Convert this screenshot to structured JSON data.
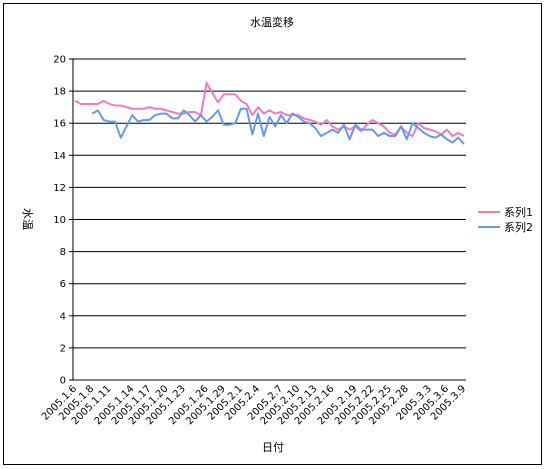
{
  "chart_data": {
    "type": "line",
    "title": "水温変移",
    "xlabel": "日付",
    "ylabel": "水温",
    "ylim": [
      0,
      20
    ],
    "yticks": [
      0,
      2,
      4,
      6,
      8,
      10,
      12,
      14,
      16,
      18,
      20
    ],
    "grid": "horizontal",
    "legend_position": "right",
    "xtick_labels": [
      "2005.1.6",
      "2005.1.8",
      "2005.1.11",
      "2005.1.14",
      "2005.1.17",
      "2005.1.20",
      "2005.1.23",
      "2005.1.26",
      "2005.1.29",
      "2005.2.1",
      "2005.2.4",
      "2005.2.7",
      "2005.2.10",
      "2005.2.13",
      "2005.2.16",
      "2005.2.19",
      "2005.2.22",
      "2005.2.25",
      "2005.2.28",
      "2005.3.3",
      "2005.3.6",
      "2005.3.9"
    ],
    "series": [
      {
        "name": "系列1",
        "color": "#f07cc0",
        "values": [
          17.4,
          17.2,
          17.2,
          17.2,
          17.2,
          17.4,
          17.2,
          17.1,
          17.1,
          17.0,
          16.9,
          16.9,
          16.9,
          17.0,
          16.9,
          16.9,
          16.8,
          16.7,
          16.6,
          16.6,
          16.7,
          16.7,
          16.5,
          18.5,
          17.9,
          17.3,
          17.8,
          17.8,
          17.8,
          17.4,
          17.2,
          16.5,
          17.0,
          16.6,
          16.8,
          16.6,
          16.7,
          16.5,
          16.5,
          16.5,
          16.3,
          16.2,
          16.1,
          15.9,
          16.2,
          15.8,
          15.6,
          15.8,
          15.6,
          15.8,
          15.5,
          15.9,
          16.2,
          16.0,
          15.8,
          15.4,
          15.3,
          15.8,
          15.4,
          15.2,
          16.0,
          15.7,
          15.6,
          15.5,
          15.3,
          15.6,
          15.2,
          15.4,
          15.2
        ]
      },
      {
        "name": "系列2",
        "color": "#6699e8",
        "values": [
          null,
          null,
          null,
          16.6,
          16.8,
          16.2,
          16.1,
          16.1,
          15.1,
          15.8,
          16.5,
          16.1,
          16.2,
          16.2,
          16.5,
          16.6,
          16.6,
          16.3,
          16.3,
          16.8,
          16.5,
          16.1,
          16.5,
          16.1,
          16.4,
          16.8,
          15.9,
          15.9,
          16.0,
          16.9,
          16.9,
          15.3,
          16.6,
          15.2,
          16.4,
          15.8,
          16.5,
          16.0,
          16.6,
          16.4,
          16.1,
          16.0,
          15.7,
          15.2,
          15.4,
          15.6,
          15.4,
          15.9,
          15.0,
          15.9,
          15.6,
          15.6,
          15.6,
          15.2,
          15.4,
          15.2,
          15.2,
          15.8,
          15.0,
          16.0,
          15.7,
          15.4,
          15.2,
          15.1,
          15.3,
          15.0,
          14.8,
          15.1,
          14.7
        ]
      }
    ]
  }
}
